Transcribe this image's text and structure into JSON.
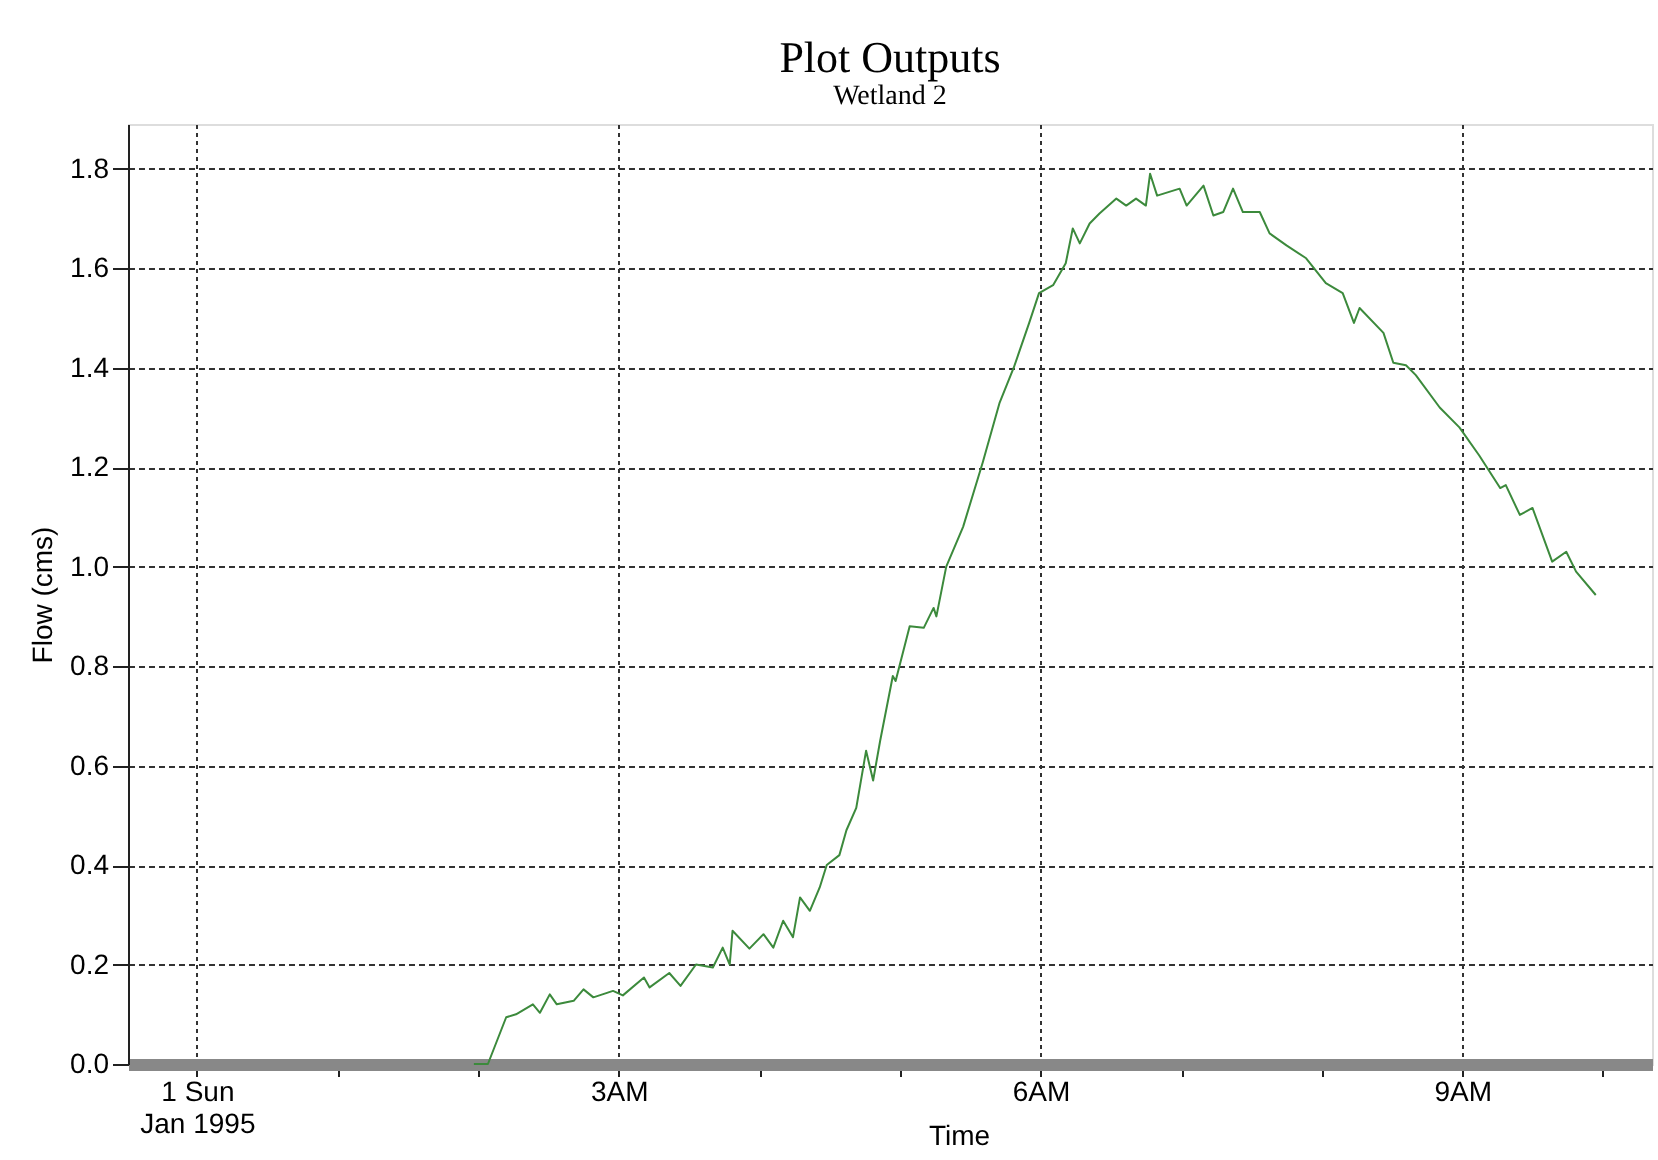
{
  "chart_data": {
    "type": "line",
    "title": "Plot Outputs",
    "subtitle": "Wetland 2",
    "xlabel": "Time",
    "ylabel": "Flow (cms)",
    "x": [
      1.97,
      2.07,
      2.2,
      2.27,
      2.39,
      2.44,
      2.51,
      2.56,
      2.68,
      2.75,
      2.82,
      2.96,
      3.03,
      3.18,
      3.22,
      3.36,
      3.44,
      3.55,
      3.67,
      3.74,
      3.79,
      3.81,
      3.93,
      4.03,
      4.1,
      4.17,
      4.24,
      4.29,
      4.36,
      4.43,
      4.48,
      4.57,
      4.62,
      4.69,
      4.76,
      4.81,
      4.86,
      4.95,
      4.97,
      5.07,
      5.17,
      5.24,
      5.26,
      5.33,
      5.45,
      5.59,
      5.71,
      5.81,
      5.92,
      5.99,
      6.09,
      6.18,
      6.23,
      6.28,
      6.35,
      6.42,
      6.54,
      6.61,
      6.68,
      6.75,
      6.78,
      6.83,
      6.99,
      7.04,
      7.16,
      7.23,
      7.3,
      7.37,
      7.44,
      7.56,
      7.63,
      7.75,
      7.89,
      8.03,
      8.15,
      8.23,
      8.27,
      8.44,
      8.51,
      8.6,
      8.67,
      8.84,
      8.98,
      9.12,
      9.27,
      9.31,
      9.41,
      9.5,
      9.64,
      9.74,
      9.81,
      9.95
    ],
    "series": [
      {
        "color": "#3c8a3c",
        "values": [
          0,
          0,
          0.094,
          0.1,
          0.12,
          0.103,
          0.14,
          0.12,
          0.127,
          0.15,
          0.134,
          0.147,
          0.138,
          0.174,
          0.154,
          0.183,
          0.157,
          0.2,
          0.194,
          0.234,
          0.2,
          0.268,
          0.232,
          0.261,
          0.234,
          0.288,
          0.255,
          0.335,
          0.308,
          0.355,
          0.4,
          0.42,
          0.47,
          0.515,
          0.63,
          0.57,
          0.65,
          0.78,
          0.77,
          0.88,
          0.877,
          0.917,
          0.9,
          1.0,
          1.08,
          1.21,
          1.33,
          1.4,
          1.49,
          1.55,
          1.566,
          1.61,
          1.68,
          1.65,
          1.69,
          1.71,
          1.74,
          1.726,
          1.74,
          1.726,
          1.79,
          1.746,
          1.76,
          1.726,
          1.766,
          1.706,
          1.713,
          1.76,
          1.713,
          1.713,
          1.67,
          1.646,
          1.62,
          1.57,
          1.55,
          1.49,
          1.52,
          1.47,
          1.41,
          1.405,
          1.385,
          1.32,
          1.28,
          1.224,
          1.158,
          1.164,
          1.104,
          1.118,
          1.01,
          1.03,
          0.99,
          0.943
        ]
      }
    ],
    "xlim": [
      -0.49,
      10.35
    ],
    "xticks": [
      {
        "value": 0,
        "label": "1 Sun\nJan 1995"
      },
      {
        "value": 1,
        "label": null
      },
      {
        "value": 2,
        "label": null
      },
      {
        "value": 3,
        "label": "3AM"
      },
      {
        "value": 4,
        "label": null
      },
      {
        "value": 5,
        "label": null
      },
      {
        "value": 6,
        "label": "6AM"
      },
      {
        "value": 7,
        "label": null
      },
      {
        "value": 8,
        "label": null
      },
      {
        "value": 9,
        "label": "9AM"
      },
      {
        "value": 10,
        "label": null
      }
    ],
    "ylim": [
      0,
      1.89
    ],
    "yticks": [
      {
        "value": 0,
        "label": "0.0"
      },
      {
        "value": 0.2,
        "label": "0.2"
      },
      {
        "value": 0.4,
        "label": "0.4"
      },
      {
        "value": 0.6,
        "label": "0.6"
      },
      {
        "value": 0.8,
        "label": "0.8"
      },
      {
        "value": 1.0,
        "label": "1.0"
      },
      {
        "value": 1.2,
        "label": "1.2"
      },
      {
        "value": 1.4,
        "label": "1.4"
      },
      {
        "value": 1.6,
        "label": "1.6"
      },
      {
        "value": 1.8,
        "label": "1.8"
      }
    ],
    "grid": true
  }
}
